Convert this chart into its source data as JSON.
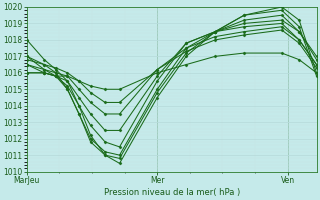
{
  "xlabel": "Pression niveau de la mer( hPa )",
  "ylim": [
    1010,
    1020
  ],
  "background_color": "#c5eaea",
  "grid_color_major": "#aed4d4",
  "grid_color_minor": "#c0e0e0",
  "line_color": "#1a6b1a",
  "xtick_labels": [
    "MarJeu",
    "Mer",
    "Ven"
  ],
  "xtick_positions": [
    0.0,
    0.45,
    0.9
  ],
  "lines": [
    {
      "x": [
        0.0,
        0.06,
        0.1,
        0.14,
        0.18,
        0.22,
        0.27,
        0.32,
        0.45,
        0.55,
        0.65,
        0.75,
        0.88,
        0.94,
        1.0
      ],
      "y": [
        1018.0,
        1016.8,
        1016.2,
        1015.5,
        1014.0,
        1012.2,
        1011.0,
        1010.5,
        1014.5,
        1017.0,
        1018.5,
        1019.5,
        1020.0,
        1019.2,
        1016.0
      ]
    },
    {
      "x": [
        0.0,
        0.06,
        0.1,
        0.14,
        0.18,
        0.22,
        0.27,
        0.32,
        0.45,
        0.55,
        0.65,
        0.75,
        0.88,
        0.94,
        1.0
      ],
      "y": [
        1017.0,
        1016.5,
        1016.0,
        1015.0,
        1013.5,
        1011.8,
        1011.0,
        1010.8,
        1014.8,
        1017.2,
        1018.5,
        1019.5,
        1019.8,
        1018.8,
        1015.8
      ]
    },
    {
      "x": [
        0.0,
        0.06,
        0.1,
        0.14,
        0.18,
        0.22,
        0.27,
        0.32,
        0.45,
        0.55,
        0.65,
        0.75,
        0.88,
        0.94,
        1.0
      ],
      "y": [
        1017.0,
        1016.2,
        1015.8,
        1015.0,
        1013.5,
        1012.0,
        1011.2,
        1011.0,
        1015.0,
        1017.5,
        1018.5,
        1019.2,
        1019.5,
        1018.5,
        1017.0
      ]
    },
    {
      "x": [
        0.0,
        0.06,
        0.1,
        0.14,
        0.18,
        0.22,
        0.27,
        0.32,
        0.45,
        0.55,
        0.65,
        0.75,
        0.88,
        0.94,
        1.0
      ],
      "y": [
        1016.5,
        1016.0,
        1015.8,
        1015.2,
        1014.0,
        1012.8,
        1011.8,
        1011.5,
        1015.5,
        1017.8,
        1018.5,
        1019.0,
        1019.2,
        1018.5,
        1016.8
      ]
    },
    {
      "x": [
        0.0,
        0.06,
        0.1,
        0.14,
        0.18,
        0.22,
        0.27,
        0.32,
        0.45,
        0.55,
        0.65,
        0.75,
        0.88,
        0.94,
        1.0
      ],
      "y": [
        1016.0,
        1016.0,
        1015.8,
        1015.5,
        1014.5,
        1013.5,
        1012.5,
        1012.5,
        1015.8,
        1017.8,
        1018.5,
        1018.8,
        1019.0,
        1018.0,
        1016.5
      ]
    },
    {
      "x": [
        0.0,
        0.06,
        0.1,
        0.14,
        0.18,
        0.22,
        0.27,
        0.32,
        0.45,
        0.55,
        0.65,
        0.75,
        0.88,
        0.94,
        1.0
      ],
      "y": [
        1016.5,
        1016.2,
        1016.0,
        1015.8,
        1015.0,
        1014.2,
        1013.5,
        1013.5,
        1016.2,
        1017.5,
        1018.2,
        1018.5,
        1018.8,
        1018.0,
        1016.5
      ]
    },
    {
      "x": [
        0.0,
        0.06,
        0.1,
        0.14,
        0.18,
        0.22,
        0.27,
        0.32,
        0.45,
        0.55,
        0.65,
        0.75,
        0.88,
        0.94,
        1.0
      ],
      "y": [
        1016.8,
        1016.5,
        1016.3,
        1016.0,
        1015.5,
        1014.8,
        1014.2,
        1014.2,
        1016.2,
        1017.3,
        1018.0,
        1018.3,
        1018.6,
        1017.8,
        1016.3
      ]
    },
    {
      "x": [
        0.0,
        0.06,
        0.1,
        0.14,
        0.18,
        0.22,
        0.27,
        0.32,
        0.45,
        0.55,
        0.65,
        0.75,
        0.88,
        0.94,
        1.0
      ],
      "y": [
        1016.0,
        1016.0,
        1015.8,
        1015.8,
        1015.5,
        1015.2,
        1015.0,
        1015.0,
        1016.0,
        1016.5,
        1017.0,
        1017.2,
        1017.2,
        1016.8,
        1016.0
      ]
    }
  ]
}
